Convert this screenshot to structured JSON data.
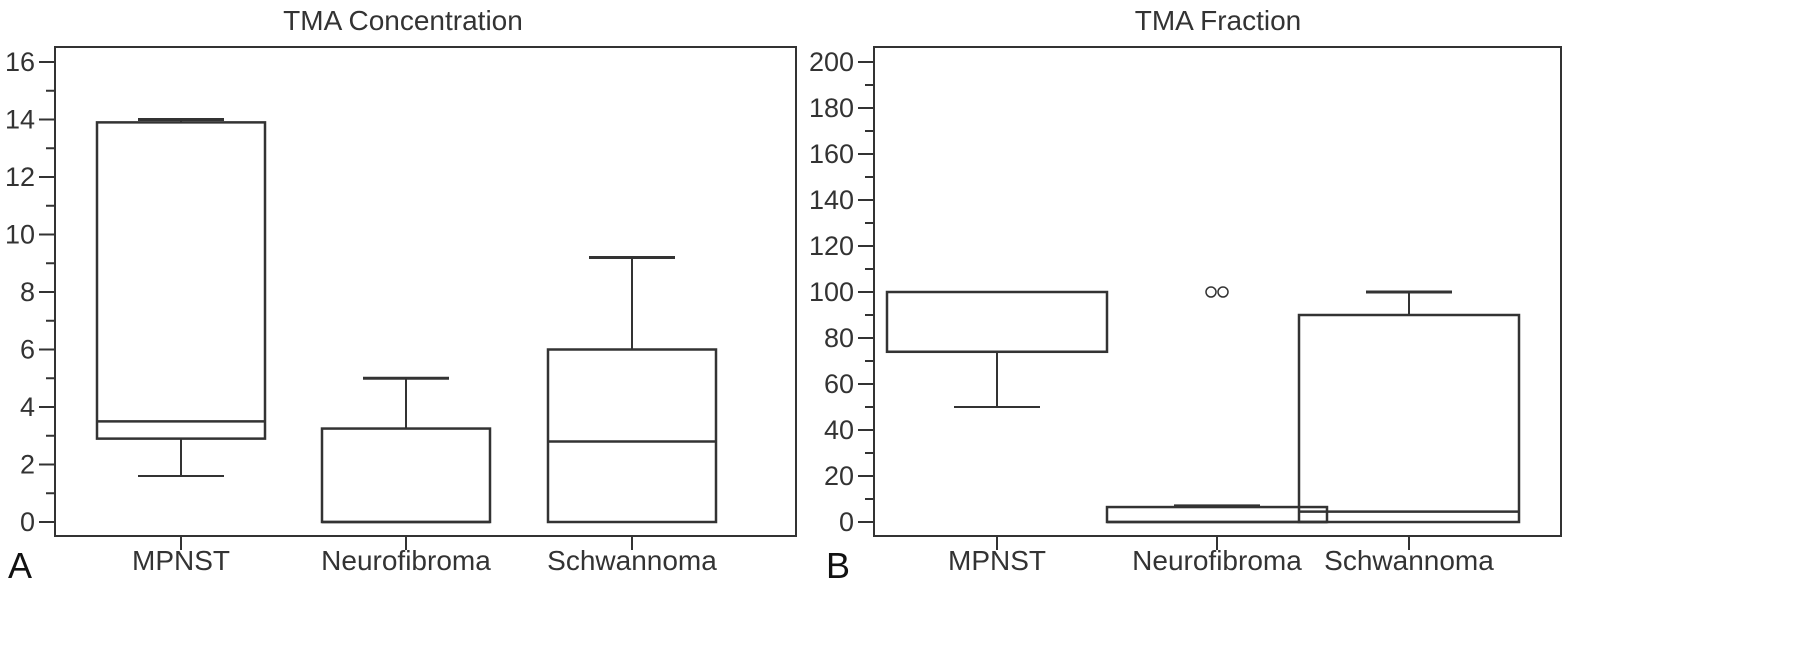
{
  "panels": [
    {
      "letter": "A"
    },
    {
      "letter": "B"
    }
  ],
  "chart_data": [
    {
      "type": "box",
      "title": "TMA Concentration",
      "xlabel": "",
      "ylabel": "",
      "ylim": [
        0,
        16
      ],
      "yticks": [
        0,
        2,
        4,
        6,
        8,
        10,
        12,
        14,
        16
      ],
      "grid": false,
      "categories": [
        "MPNST",
        "Neurofibroma",
        "Schwannoma"
      ],
      "boxes": [
        {
          "whisker_low": 1.6,
          "q1": 2.9,
          "median": 3.5,
          "q3": 13.9,
          "whisker_high": 14.0,
          "outliers": []
        },
        {
          "whisker_low": 0,
          "q1": 0,
          "median": 0,
          "q3": 3.25,
          "whisker_high": 5.0,
          "outliers": []
        },
        {
          "whisker_low": 0,
          "q1": 0,
          "median": 2.8,
          "q3": 6.0,
          "whisker_high": 9.2,
          "outliers": []
        }
      ]
    },
    {
      "type": "box",
      "title": "TMA Fraction",
      "xlabel": "",
      "ylabel": "",
      "ylim": [
        0,
        200
      ],
      "yticks": [
        0,
        20,
        40,
        60,
        80,
        100,
        120,
        140,
        160,
        180,
        200
      ],
      "grid": false,
      "categories": [
        "MPNST",
        "Neurofibroma",
        "Schwannoma"
      ],
      "boxes": [
        {
          "whisker_low": 50,
          "q1": 74,
          "median": 74,
          "q3": 100,
          "whisker_high": 100,
          "outliers": []
        },
        {
          "whisker_low": 0,
          "q1": 0,
          "median": 0,
          "q3": 6.5,
          "whisker_high": 7,
          "outliers": [
            100,
            100
          ]
        },
        {
          "whisker_low": 0,
          "q1": 0,
          "median": 4.5,
          "q3": 90,
          "whisker_high": 100,
          "outliers": []
        }
      ]
    }
  ]
}
